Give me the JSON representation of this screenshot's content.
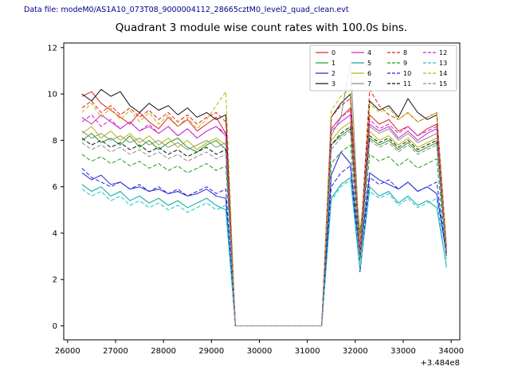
{
  "header": {
    "datafile": "Data file: modeM0/AS1A10_073T08_9000004112_28665cztM0_level2_quad_clean.evt",
    "color": "#00008b"
  },
  "chart_data": {
    "type": "line",
    "title": "Quadrant 3 module wise count rates with 100.0s bins.",
    "xlabel": "",
    "ylabel": "",
    "x_offset_label": "+3.484e8",
    "xlim": [
      25920,
      34180
    ],
    "ylim": [
      -0.6,
      12.2
    ],
    "xticks": [
      26000,
      27000,
      28000,
      29000,
      30000,
      31000,
      32000,
      33000,
      34000
    ],
    "yticks": [
      0,
      2,
      4,
      6,
      8,
      10,
      12
    ],
    "grid": false,
    "legend_position": "upper right",
    "x": [
      26300,
      26500,
      26700,
      26900,
      27100,
      27300,
      27500,
      27700,
      27900,
      28100,
      28300,
      28500,
      28700,
      28900,
      29100,
      29300,
      29500,
      29700,
      29900,
      30100,
      30300,
      30500,
      30700,
      30900,
      31100,
      31300,
      31500,
      31700,
      31900,
      32100,
      32300,
      32500,
      32700,
      32900,
      33100,
      33300,
      33500,
      33700,
      33900
    ],
    "series": [
      {
        "name": "0",
        "color": "#e02020",
        "dash": "solid",
        "values": [
          9.9,
          10.1,
          9.6,
          9.3,
          9.0,
          8.7,
          9.2,
          8.8,
          8.5,
          9.0,
          8.6,
          8.9,
          8.4,
          8.7,
          9.0,
          8.3,
          0,
          0,
          0,
          0,
          0,
          0,
          0,
          0,
          0,
          0,
          8.5,
          9.0,
          9.4,
          3.0,
          9.1,
          8.7,
          8.9,
          8.4,
          8.6,
          8.2,
          8.5,
          8.7,
          3.2
        ]
      },
      {
        "name": "1",
        "color": "#1a9e1a",
        "dash": "solid",
        "values": [
          8.0,
          8.3,
          7.9,
          8.1,
          7.8,
          8.2,
          7.7,
          8.0,
          7.6,
          7.9,
          8.1,
          7.7,
          7.5,
          7.8,
          8.0,
          7.6,
          0,
          0,
          0,
          0,
          0,
          0,
          0,
          0,
          0,
          0,
          7.8,
          8.2,
          8.5,
          4.0,
          8.1,
          7.8,
          8.0,
          7.6,
          7.9,
          7.5,
          7.7,
          7.9,
          3.0
        ]
      },
      {
        "name": "2",
        "color": "#2020dd",
        "dash": "solid",
        "values": [
          6.6,
          6.3,
          6.5,
          6.1,
          6.2,
          5.9,
          6.0,
          5.8,
          5.9,
          5.7,
          5.8,
          5.6,
          5.7,
          5.9,
          5.6,
          5.5,
          0,
          0,
          0,
          0,
          0,
          0,
          0,
          0,
          0,
          0,
          6.5,
          7.5,
          7.0,
          2.9,
          6.6,
          6.3,
          6.1,
          5.9,
          6.2,
          5.8,
          6.0,
          5.7,
          3.1
        ]
      },
      {
        "name": "3",
        "color": "#101010",
        "dash": "solid",
        "values": [
          10.0,
          9.7,
          10.2,
          9.9,
          10.1,
          9.5,
          9.2,
          9.6,
          9.3,
          9.5,
          9.1,
          9.4,
          9.0,
          9.2,
          8.9,
          9.1,
          0,
          0,
          0,
          0,
          0,
          0,
          0,
          0,
          0,
          0,
          9.0,
          9.6,
          10.0,
          3.3,
          9.7,
          9.3,
          9.5,
          9.0,
          9.8,
          9.2,
          8.9,
          9.1,
          3.4
        ]
      },
      {
        "name": "4",
        "color": "#cc22cc",
        "dash": "solid",
        "values": [
          9.0,
          8.7,
          9.1,
          8.8,
          8.5,
          8.8,
          8.4,
          8.6,
          8.3,
          8.6,
          8.2,
          8.5,
          8.1,
          8.4,
          8.6,
          8.2,
          0,
          0,
          0,
          0,
          0,
          0,
          0,
          0,
          0,
          0,
          8.4,
          8.8,
          9.1,
          3.1,
          8.7,
          8.4,
          8.6,
          8.1,
          8.4,
          8.0,
          8.3,
          8.5,
          3.2
        ]
      },
      {
        "name": "5",
        "color": "#00a8a0",
        "dash": "solid",
        "values": [
          6.1,
          5.8,
          6.0,
          5.6,
          5.8,
          5.4,
          5.6,
          5.3,
          5.5,
          5.2,
          5.4,
          5.1,
          5.3,
          5.5,
          5.2,
          5.0,
          0,
          0,
          0,
          0,
          0,
          0,
          0,
          0,
          0,
          0,
          5.5,
          6.1,
          6.4,
          2.4,
          6.0,
          5.6,
          5.8,
          5.3,
          5.6,
          5.2,
          5.4,
          5.1,
          2.6
        ]
      },
      {
        "name": "6",
        "color": "#b8b400",
        "dash": "solid",
        "values": [
          8.3,
          8.6,
          8.1,
          8.4,
          8.0,
          8.3,
          7.9,
          8.2,
          7.8,
          8.1,
          7.7,
          8.0,
          7.6,
          7.9,
          8.1,
          7.8,
          0,
          0,
          0,
          0,
          0,
          0,
          0,
          0,
          0,
          0,
          8.0,
          8.5,
          8.8,
          3.5,
          8.4,
          8.0,
          8.2,
          7.8,
          8.1,
          7.7,
          7.9,
          8.1,
          3.3
        ]
      },
      {
        "name": "7",
        "color": "#8c8c8c",
        "dash": "solid",
        "values": [
          8.4,
          8.1,
          8.3,
          8.0,
          8.2,
          7.9,
          8.1,
          7.8,
          8.0,
          7.7,
          7.9,
          7.6,
          7.8,
          8.0,
          7.7,
          7.9,
          0,
          0,
          0,
          0,
          0,
          0,
          0,
          0,
          0,
          0,
          8.2,
          9.0,
          11.4,
          3.2,
          8.6,
          8.3,
          8.5,
          8.0,
          8.3,
          7.9,
          8.1,
          8.3,
          3.3
        ]
      },
      {
        "name": "8",
        "color": "#e02020",
        "dash": "dashed",
        "values": [
          9.4,
          9.7,
          9.2,
          9.5,
          9.1,
          9.4,
          9.0,
          9.3,
          8.9,
          9.2,
          8.8,
          9.1,
          8.7,
          9.0,
          9.2,
          8.8,
          0,
          0,
          0,
          0,
          0,
          0,
          0,
          0,
          0,
          0,
          9.0,
          9.5,
          9.8,
          3.4,
          10.2,
          9.5,
          9.1,
          8.9,
          9.2,
          8.8,
          9.0,
          9.2,
          3.5
        ]
      },
      {
        "name": "9",
        "color": "#1a9e1a",
        "dash": "dashed",
        "values": [
          7.4,
          7.1,
          7.3,
          7.0,
          7.2,
          6.9,
          7.1,
          6.8,
          7.0,
          6.7,
          6.9,
          6.6,
          6.8,
          7.0,
          6.7,
          6.9,
          0,
          0,
          0,
          0,
          0,
          0,
          0,
          0,
          0,
          0,
          7.0,
          7.5,
          7.8,
          2.8,
          7.4,
          7.1,
          7.3,
          6.9,
          7.2,
          6.8,
          7.0,
          7.2,
          2.9
        ]
      },
      {
        "name": "10",
        "color": "#2020dd",
        "dash": "dashed",
        "values": [
          6.8,
          6.4,
          6.2,
          6.0,
          6.2,
          5.9,
          6.1,
          5.8,
          6.0,
          5.7,
          5.9,
          5.6,
          5.8,
          6.0,
          5.7,
          5.9,
          0,
          0,
          0,
          0,
          0,
          0,
          0,
          0,
          0,
          0,
          6.0,
          6.6,
          6.9,
          2.3,
          6.4,
          6.1,
          6.3,
          5.9,
          6.2,
          5.8,
          6.0,
          6.2,
          3.0
        ]
      },
      {
        "name": "11",
        "color": "#101010",
        "dash": "dashed",
        "values": [
          8.1,
          7.8,
          8.0,
          7.7,
          7.9,
          7.6,
          7.8,
          7.5,
          7.7,
          7.4,
          7.6,
          7.3,
          7.5,
          7.7,
          7.4,
          7.6,
          0,
          0,
          0,
          0,
          0,
          0,
          0,
          0,
          0,
          0,
          7.8,
          8.3,
          8.6,
          3.0,
          8.2,
          7.9,
          8.1,
          7.7,
          8.0,
          7.6,
          7.8,
          8.0,
          3.1
        ]
      },
      {
        "name": "12",
        "color": "#cc22cc",
        "dash": "dashed",
        "values": [
          8.8,
          9.1,
          8.6,
          8.9,
          8.5,
          8.8,
          8.4,
          8.7,
          8.3,
          8.6,
          8.2,
          8.5,
          8.1,
          8.4,
          8.6,
          8.3,
          0,
          0,
          0,
          0,
          0,
          0,
          0,
          0,
          0,
          0,
          8.5,
          9.0,
          9.3,
          3.2,
          8.9,
          8.5,
          8.7,
          8.3,
          8.6,
          8.2,
          8.4,
          8.6,
          3.3
        ]
      },
      {
        "name": "13",
        "color": "#20c4cc",
        "dash": "dashed",
        "values": [
          5.9,
          5.6,
          5.8,
          5.4,
          5.6,
          5.2,
          5.4,
          5.1,
          5.3,
          5.0,
          5.2,
          4.9,
          5.1,
          5.3,
          5.0,
          5.2,
          0,
          0,
          0,
          0,
          0,
          0,
          0,
          0,
          0,
          0,
          5.4,
          6.0,
          6.3,
          2.4,
          5.8,
          5.5,
          5.7,
          5.2,
          5.5,
          5.1,
          5.3,
          5.5,
          2.5
        ]
      },
      {
        "name": "14",
        "color": "#c2b400",
        "dash": "dashed",
        "values": [
          9.2,
          9.6,
          9.0,
          9.4,
          8.9,
          9.3,
          8.8,
          9.2,
          8.7,
          9.1,
          8.6,
          9.0,
          8.5,
          8.9,
          9.5,
          10.1,
          0,
          0,
          0,
          0,
          0,
          0,
          0,
          0,
          0,
          0,
          9.3,
          9.9,
          10.2,
          3.6,
          9.6,
          9.2,
          9.4,
          8.9,
          9.2,
          8.8,
          9.0,
          9.2,
          3.5
        ]
      },
      {
        "name": "15",
        "color": "#8c8c8c",
        "dash": "dashed",
        "values": [
          7.9,
          7.6,
          7.8,
          7.5,
          7.7,
          7.4,
          7.6,
          7.3,
          7.5,
          7.2,
          7.4,
          7.1,
          7.3,
          7.5,
          7.2,
          7.4,
          0,
          0,
          0,
          0,
          0,
          0,
          0,
          0,
          0,
          0,
          7.6,
          8.1,
          8.4,
          3.0,
          8.0,
          7.7,
          7.9,
          7.5,
          7.8,
          7.4,
          7.6,
          7.8,
          3.1
        ]
      }
    ]
  }
}
